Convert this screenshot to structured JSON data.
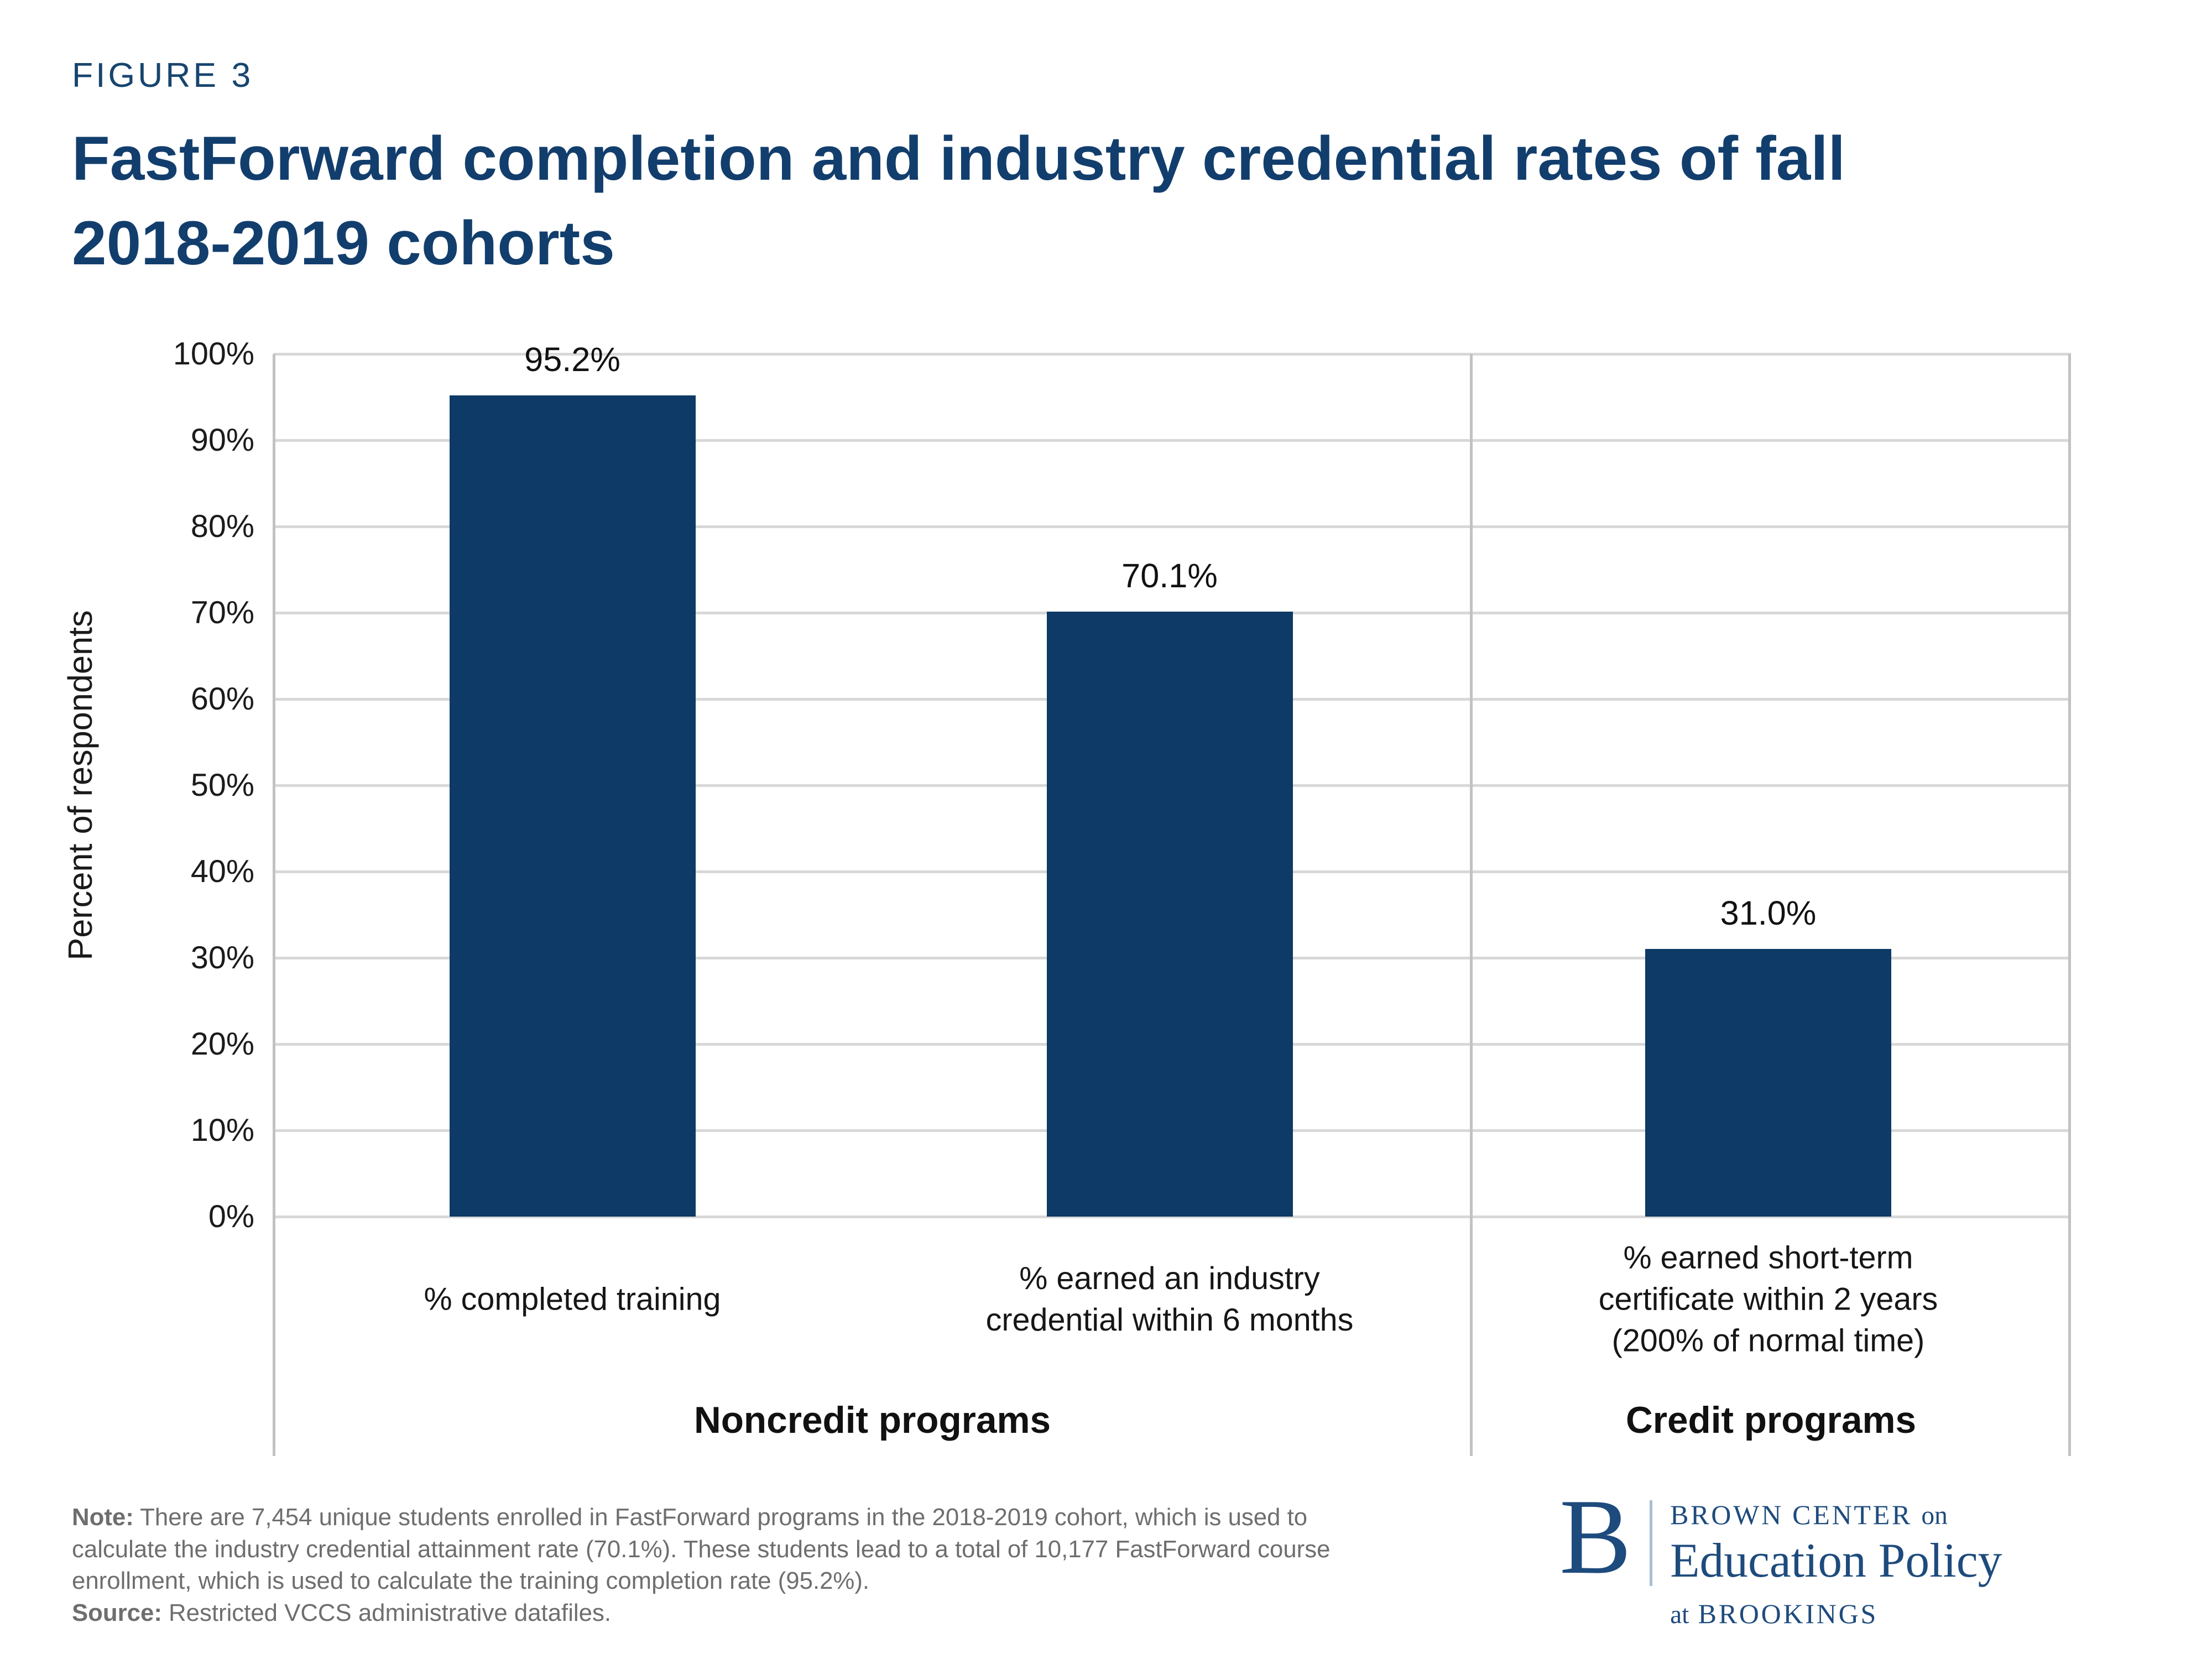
{
  "header": {
    "figure_label": "FIGURE 3",
    "title_lines": [
      "FastForward completion and industry credential rates of fall",
      "2018-2019 cohorts"
    ],
    "title": "FastForward completion and industry credential rates of fall 2018-2019 cohorts"
  },
  "chart_data": {
    "type": "bar",
    "title": "FastForward completion and industry credential rates of fall 2018-2019 cohorts",
    "xlabel": "",
    "ylabel": "Percent of respondents",
    "ylim": [
      0,
      100
    ],
    "ytick_step": 10,
    "yticks": [
      "100%",
      "90%",
      "80%",
      "70%",
      "60%",
      "50%",
      "40%",
      "30%",
      "20%",
      "10%",
      "0%"
    ],
    "grid": true,
    "legend": null,
    "groups": [
      {
        "label": "Noncredit programs",
        "bars": [
          {
            "category": "% completed training",
            "category_lines": [
              "% completed training"
            ],
            "value": 95.2,
            "value_label": "95.2%"
          },
          {
            "category": "% earned an industry credential within 6 months",
            "category_lines": [
              "% earned an industry",
              "credential within 6 months"
            ],
            "value": 70.1,
            "value_label": "70.1%"
          }
        ]
      },
      {
        "label": "Credit programs",
        "bars": [
          {
            "category": "% earned short-term certificate within 2 years (200% of normal time)",
            "category_lines": [
              "% earned short-term",
              "certificate within 2 years",
              "(200% of normal time)"
            ],
            "value": 31.0,
            "value_label": "31.0%"
          }
        ]
      }
    ]
  },
  "note": {
    "prefix": "Note:",
    "line1": " There are 7,454 unique students enrolled in FastForward programs in the 2018-2019 cohort, which is used to",
    "line2": "calculate the industry credential attainment rate (70.1%). These students lead to a total of 10,177 FastForward course",
    "line3": "enrollment, which is used to calculate the training completion rate (95.2%)."
  },
  "source": {
    "prefix": "Source:",
    "text": " Restricted VCCS administrative datafiles."
  },
  "logo": {
    "b": "B",
    "line1_caps": "BROWN CENTER",
    "line1_small": "on",
    "line2": "Education Policy",
    "line3_small": "at",
    "line3_caps": "BROOKINGS"
  },
  "colors": {
    "title_navy": "#123e6d",
    "bar_navy": "#0d3a66",
    "logo_navy": "#1e4b7d",
    "note_gray": "#6e6e6e",
    "gridline_gray": "#d8d8d8",
    "axis_gray": "#c2c2c2"
  }
}
